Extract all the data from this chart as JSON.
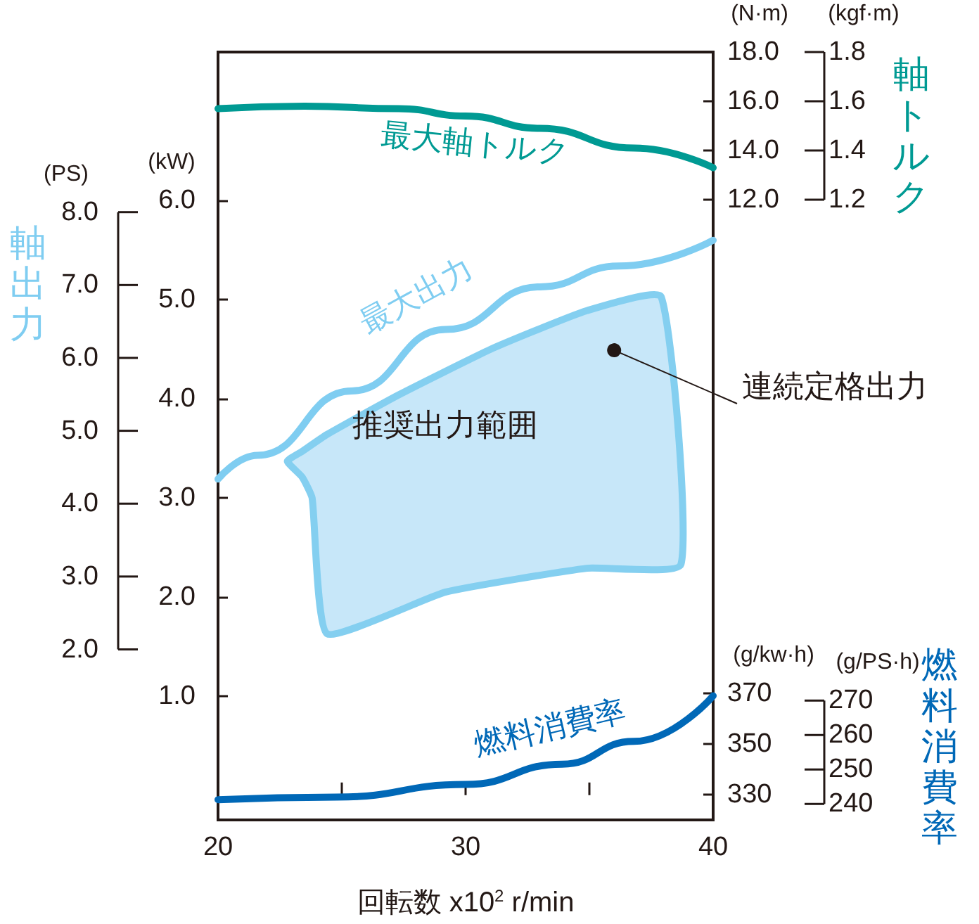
{
  "chart_data": {
    "type": "line",
    "xlabel": "回転数 x10$^{2}$ r/min",
    "xlim": [
      20,
      40
    ],
    "xticks": [
      20,
      {
        "value": 25,
        "label": null
      },
      30,
      {
        "value": 35,
        "label": null
      },
      40
    ],
    "ylabel": "(kW)",
    "ylim": [
      -0.25,
      7.5
    ],
    "yticks": [
      {
        "value": 1,
        "label": "1.0"
      },
      {
        "value": 2,
        "label": "2.0"
      },
      {
        "value": 3,
        "label": "3.0"
      },
      {
        "value": 4,
        "label": "4.0"
      },
      {
        "value": 5,
        "label": "5.0"
      },
      {
        "value": 6,
        "label": "6.0"
      }
    ],
    "y2label": "(N·m)",
    "y2lim": [
      -13.2,
      18
    ],
    "y2ticks": [
      {
        "value": 12,
        "label": "12.0"
      },
      {
        "value": 14,
        "label": "14.0"
      },
      {
        "value": 16,
        "label": "16.0"
      },
      {
        "value": 18,
        "label": "18.0"
      }
    ],
    "y3label": "(g/kw·h)",
    "y3lim": [
      320,
      623
    ],
    "y3ticks": [
      330,
      350,
      370
    ],
    "series": [
      {
        "name": "最大軸トルク",
        "color": "#009a93",
        "axis": "y2",
        "x": [
          20,
          23.5,
          27.3,
          30,
          33,
          36.8,
          40
        ],
        "values": [
          15.7,
          15.8,
          15.7,
          15.4,
          14.9,
          14.1,
          13.3
        ]
      },
      {
        "name": "最大出力",
        "color": "#7fcdf1",
        "axis": "y",
        "x": [
          20,
          21.6,
          25.4,
          29.2,
          33,
          36.2,
          40
        ],
        "values": [
          3.19,
          3.43,
          4.08,
          4.7,
          5.13,
          5.34,
          5.6
        ]
      },
      {
        "name": "燃料消費率",
        "color": "#0068b7",
        "axis": "y3",
        "x": [
          20,
          24.8,
          30,
          33.9,
          36.8,
          40
        ],
        "values": [
          328,
          329,
          334,
          342,
          351,
          369
        ]
      },
      {
        "name": "推奨出力範囲",
        "type": "area",
        "color": "#c7e7f9",
        "axis": "y",
        "x": [
          22.8,
          23.4,
          24.4,
          27.3,
          31.1,
          34.9,
          37.9,
          38.7,
          34.9,
          29.2,
          24.4,
          23.8,
          23.4
        ],
        "values": [
          3.37,
          3.47,
          3.64,
          4.04,
          4.51,
          4.89,
          5.03,
          2.33,
          2.29,
          2.05,
          1.63,
          3.0,
          3.21
        ]
      }
    ],
    "annotations": [
      "軸出力",
      "軸トルク",
      "燃料消費率",
      "(PS)",
      "(kgf·m)",
      "(g/PS·h)",
      "8.0",
      "7.0",
      "6.0",
      "5.0",
      "4.0",
      "3.0",
      "2.0",
      "1.8",
      "1.6",
      "1.4",
      "1.2",
      "270",
      "260",
      "250",
      "240",
      {
        "text": "連続定格出力",
        "x": 36.0,
        "y": 4.49
      }
    ],
    "grid": false,
    "legend": false
  }
}
